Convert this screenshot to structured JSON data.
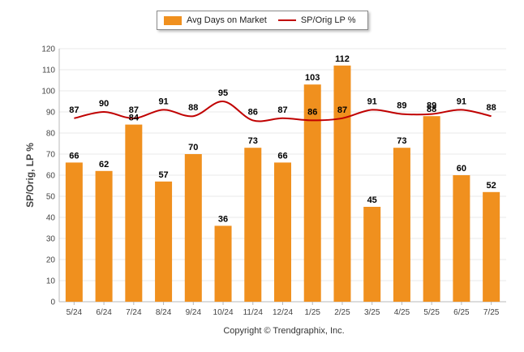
{
  "legend": {
    "bar_label": "Avg Days on Market",
    "line_label": "SP/Orig LP %"
  },
  "copyright": "Copyright © Trendgraphix, Inc.",
  "colors": {
    "bar": "#F0901E",
    "line": "#C00000",
    "grid": "#E8E8E8"
  },
  "chart_data": {
    "type": "bar",
    "categories": [
      "5/24",
      "6/24",
      "7/24",
      "8/24",
      "9/24",
      "10/24",
      "11/24",
      "12/24",
      "1/25",
      "2/25",
      "3/25",
      "4/25",
      "5/25",
      "6/25",
      "7/25"
    ],
    "series": [
      {
        "name": "Avg Days on Market",
        "type": "bar",
        "values": [
          66,
          62,
          84,
          57,
          70,
          36,
          73,
          66,
          103,
          112,
          45,
          73,
          88,
          60,
          52
        ]
      },
      {
        "name": "SP/Orig LP %",
        "type": "line",
        "values": [
          87,
          90,
          87,
          91,
          88,
          95,
          86,
          87,
          86,
          87,
          91,
          89,
          89,
          91,
          88
        ]
      }
    ],
    "ylabel": "SP/Orig, LP %",
    "ylim": [
      0,
      120
    ],
    "yticks": [
      0,
      10,
      20,
      30,
      40,
      50,
      60,
      70,
      80,
      90,
      100,
      110,
      120
    ],
    "grid": true,
    "legend_position": "top-center"
  }
}
